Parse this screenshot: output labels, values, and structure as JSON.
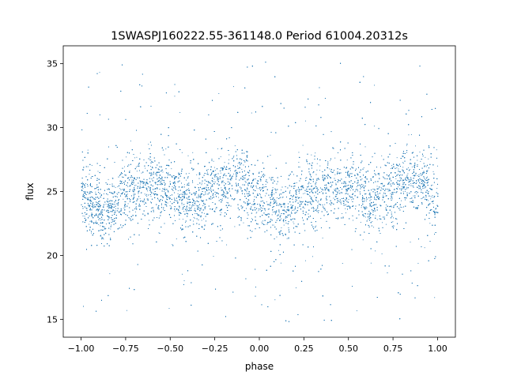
{
  "chart_data": {
    "type": "scatter",
    "title": "1SWASPJ160222.55-361148.0 Period 61004.20312s",
    "xlabel": "phase",
    "ylabel": "flux",
    "xlim": [
      -1.1,
      1.1
    ],
    "ylim": [
      13.6,
      36.4
    ],
    "xticks": [
      -1.0,
      -0.75,
      -0.5,
      -0.25,
      0.0,
      0.25,
      0.5,
      0.75,
      1.0
    ],
    "xtick_labels": [
      "−1.00",
      "−0.75",
      "−0.50",
      "−0.25",
      "0.00",
      "0.25",
      "0.50",
      "0.75",
      "1.00"
    ],
    "yticks": [
      15,
      20,
      25,
      30,
      35
    ],
    "ytick_labels": [
      "15",
      "20",
      "25",
      "30",
      "35"
    ],
    "grid": false,
    "legend": "none",
    "marker_color": "#1f77b4",
    "series": [
      {
        "phase_range": [
          -1.0,
          1.0
        ],
        "mean_flux_profile": {
          "phase": [
            -1.0,
            -0.875,
            -0.75,
            -0.625,
            -0.5,
            -0.375,
            -0.25,
            -0.125,
            0.0,
            0.125,
            0.25,
            0.375,
            0.5,
            0.625,
            0.75,
            0.875,
            1.0
          ],
          "flux": [
            24.5,
            23.6,
            24.8,
            25.6,
            25.1,
            24.2,
            25.2,
            26.0,
            24.5,
            23.6,
            24.8,
            25.6,
            25.1,
            24.2,
            25.2,
            26.0,
            24.5
          ]
        },
        "flux_scatter_sd": 1.3,
        "outlier_flux_range": [
          14.6,
          35.4
        ]
      }
    ]
  }
}
